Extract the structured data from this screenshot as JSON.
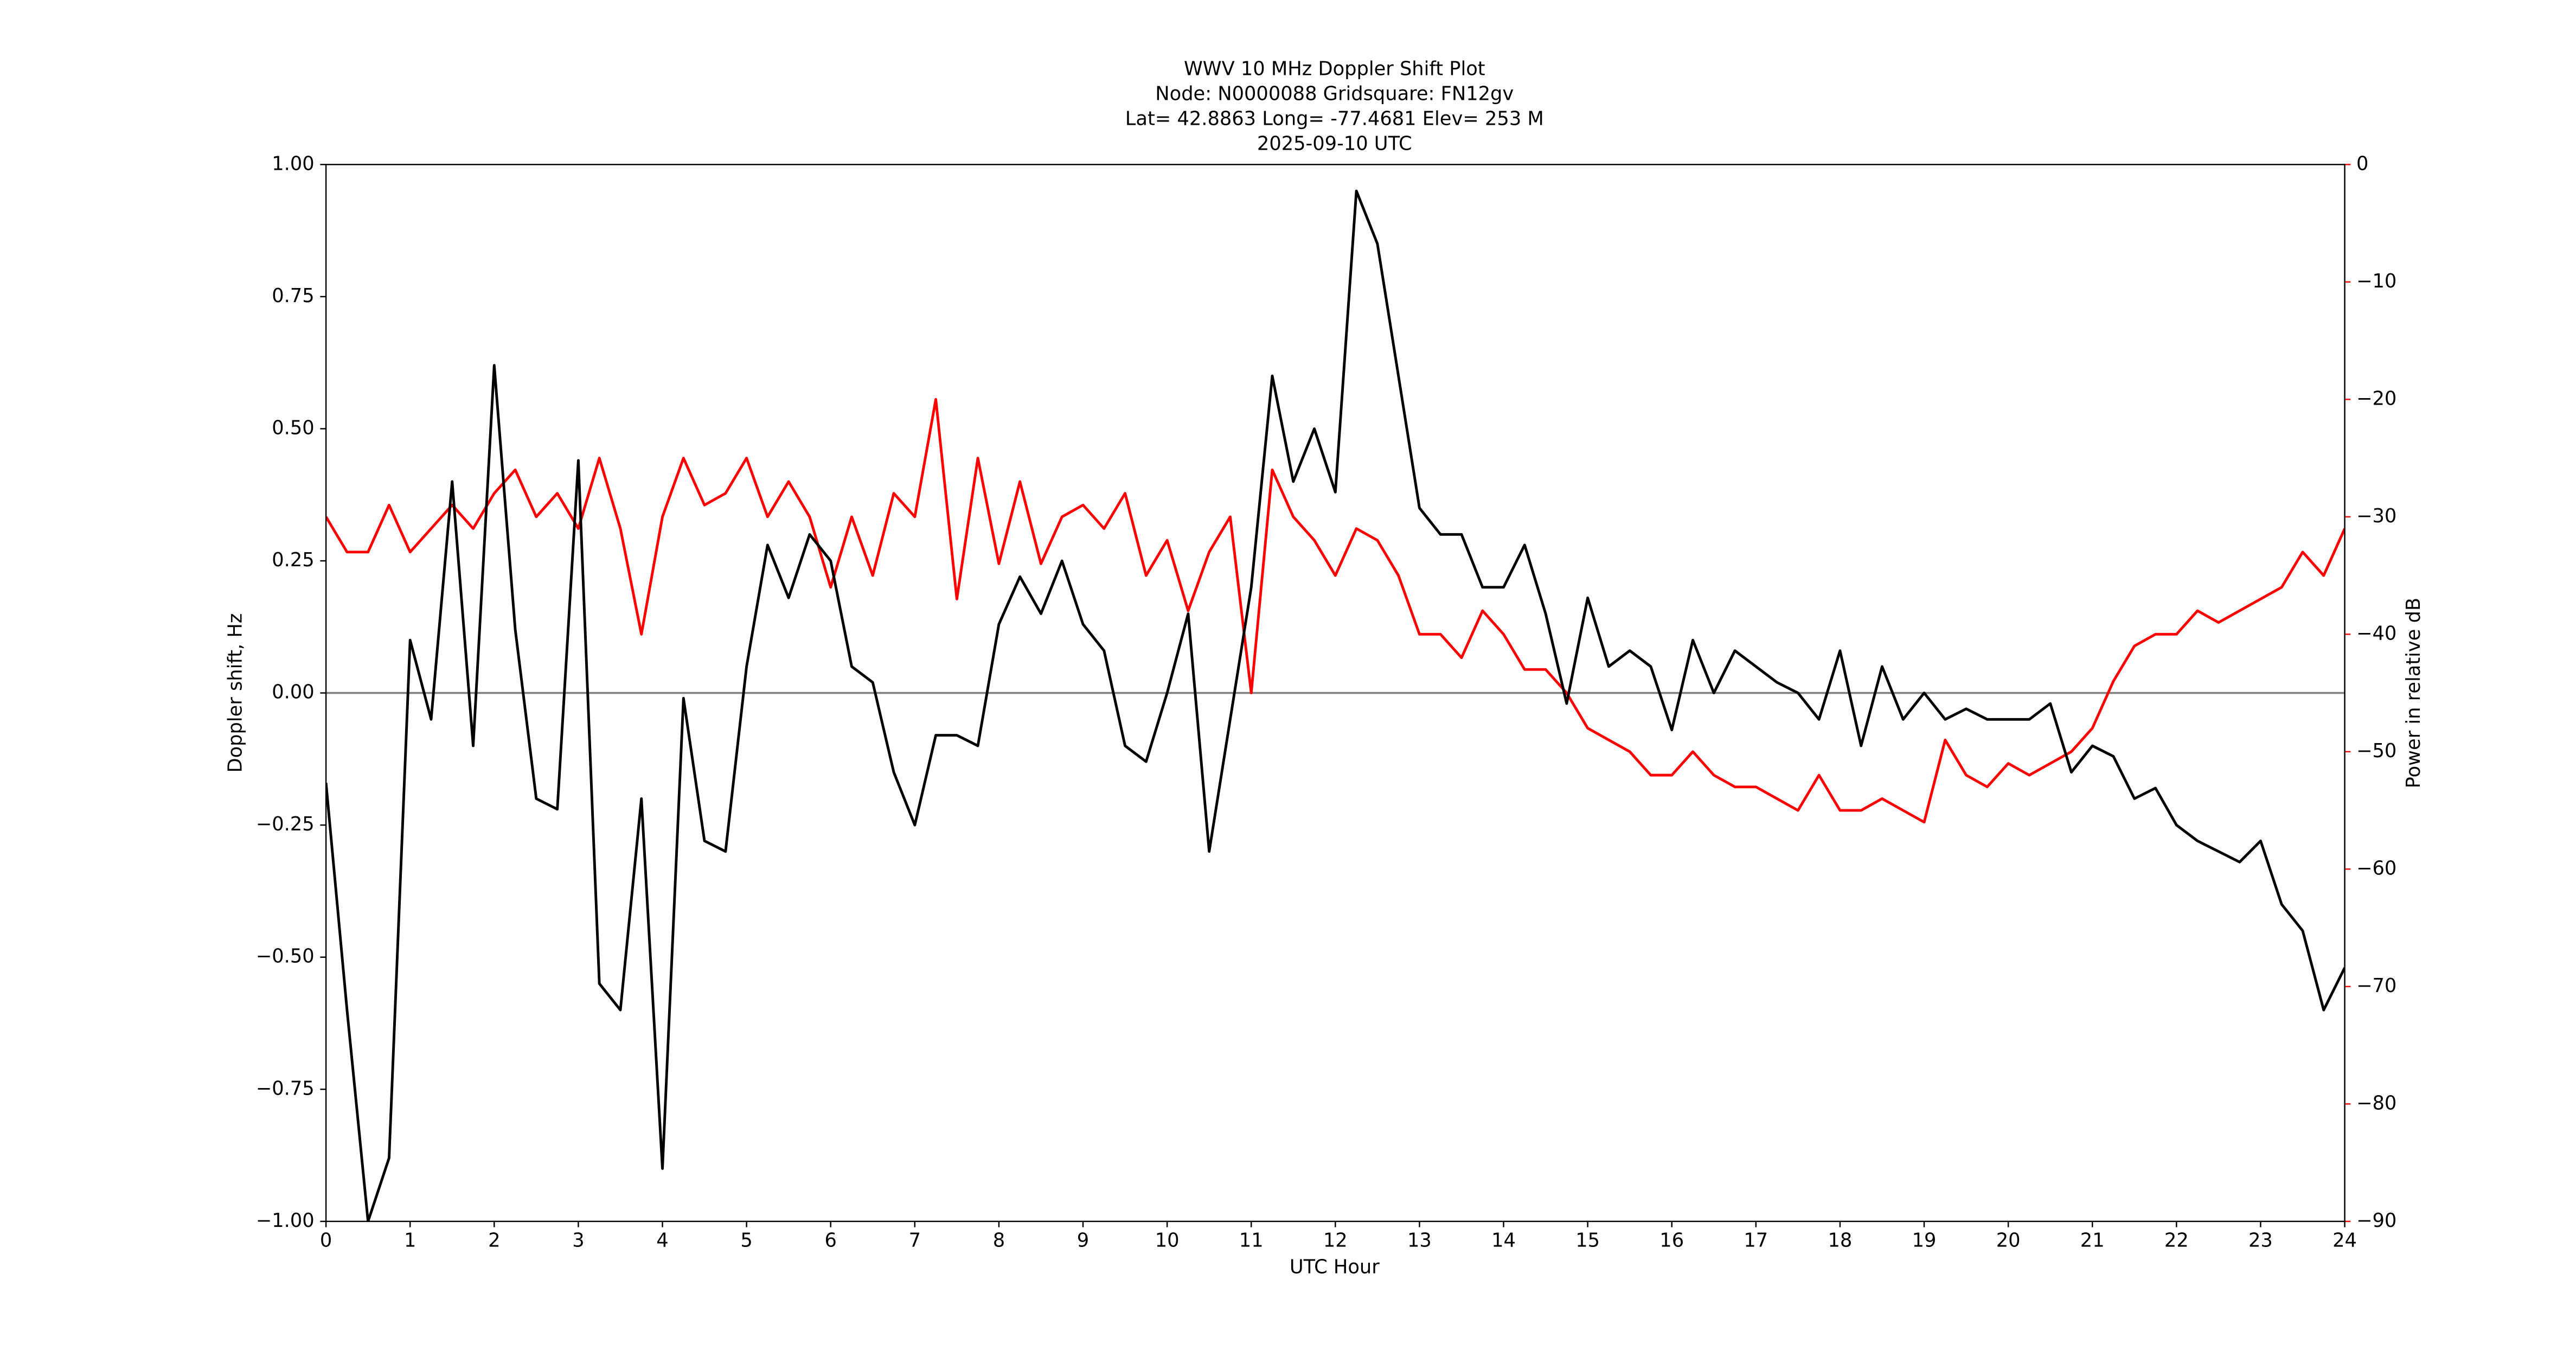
{
  "chart_data": {
    "type": "line",
    "title": [
      "WWV 10 MHz Doppler Shift Plot",
      "Node:  N0000088     Gridsquare:  FN12gv",
      "Lat= 42.8863    Long= -77.4681    Elev= 253 M",
      "2025-09-10  UTC"
    ],
    "xlabel": "UTC Hour",
    "ylabel": "Doppler shift, Hz",
    "y2label": "Power in relative dB",
    "xlim": [
      0,
      24
    ],
    "xticks": [
      0,
      1,
      2,
      3,
      4,
      5,
      6,
      7,
      8,
      9,
      10,
      11,
      12,
      13,
      14,
      15,
      16,
      17,
      18,
      19,
      20,
      21,
      22,
      23,
      24
    ],
    "ylim": [
      -1,
      1
    ],
    "yticks": [
      {
        "value": -1,
        "label": "−1.00"
      },
      {
        "value": -0.75,
        "label": "−0.75"
      },
      {
        "value": -0.5,
        "label": "−0.50"
      },
      {
        "value": -0.25,
        "label": "−0.25"
      },
      {
        "value": 0,
        "label": "0.00"
      },
      {
        "value": 0.25,
        "label": "0.25"
      },
      {
        "value": 0.5,
        "label": "0.50"
      },
      {
        "value": 0.75,
        "label": "0.75"
      },
      {
        "value": 1,
        "label": "1.00"
      }
    ],
    "y2lim": [
      -90,
      0
    ],
    "y2ticks": [
      {
        "value": -90,
        "label": "−90"
      },
      {
        "value": -80,
        "label": "−80"
      },
      {
        "value": -70,
        "label": "−70"
      },
      {
        "value": -60,
        "label": "−60"
      },
      {
        "value": -50,
        "label": "−50"
      },
      {
        "value": -40,
        "label": "−40"
      },
      {
        "value": -30,
        "label": "−30"
      },
      {
        "value": -20,
        "label": "−20"
      },
      {
        "value": -10,
        "label": "−10"
      },
      0
    ],
    "y2color": "#ff0000",
    "reference_line": 0,
    "reference_color": "#808080",
    "x": [
      0,
      0.25,
      0.5,
      0.75,
      1,
      1.25,
      1.5,
      1.75,
      2,
      2.25,
      2.5,
      2.75,
      3,
      3.25,
      3.5,
      3.75,
      4,
      4.25,
      4.5,
      4.75,
      5,
      5.25,
      5.5,
      5.75,
      6,
      6.25,
      6.5,
      6.75,
      7,
      7.25,
      7.5,
      7.75,
      8,
      8.25,
      8.5,
      8.75,
      9,
      9.25,
      9.5,
      9.75,
      10,
      10.25,
      10.5,
      10.75,
      11,
      11.25,
      11.5,
      11.75,
      12,
      12.25,
      12.5,
      12.75,
      13,
      13.25,
      13.5,
      13.75,
      14,
      14.25,
      14.5,
      14.75,
      15,
      15.25,
      15.5,
      15.75,
      16,
      16.25,
      16.5,
      16.75,
      17,
      17.25,
      17.5,
      17.75,
      18,
      18.25,
      18.5,
      18.75,
      19,
      19.25,
      19.5,
      19.75,
      20,
      20.25,
      20.5,
      20.75,
      21,
      21.25,
      21.5,
      21.75,
      22,
      22.25,
      22.5,
      22.75,
      23,
      23.25,
      23.5,
      23.75,
      24
    ],
    "series": [
      {
        "color": "#000000",
        "axis": "y",
        "values": [
          -0.17,
          -0.6,
          -1.0,
          -0.88,
          0.1,
          -0.05,
          0.4,
          -0.1,
          0.62,
          0.12,
          -0.2,
          -0.22,
          0.44,
          -0.55,
          -0.6,
          -0.2,
          -0.9,
          -0.01,
          -0.28,
          -0.3,
          0.05,
          0.28,
          0.18,
          0.3,
          0.25,
          0.05,
          0.02,
          -0.15,
          -0.25,
          -0.08,
          -0.08,
          -0.1,
          0.13,
          0.22,
          0.15,
          0.25,
          0.13,
          0.08,
          -0.1,
          -0.13,
          0.0,
          0.15,
          -0.3,
          -0.05,
          0.2,
          0.6,
          0.4,
          0.5,
          0.38,
          0.95,
          0.85,
          0.6,
          0.35,
          0.3,
          0.3,
          0.2,
          0.2,
          0.28,
          0.15,
          -0.02,
          0.18,
          0.05,
          0.08,
          0.05,
          -0.07,
          0.1,
          0.0,
          0.08,
          0.05,
          0.02,
          0.0,
          -0.05,
          0.08,
          -0.1,
          0.05,
          -0.05,
          0.0,
          -0.05,
          -0.03,
          -0.05,
          -0.05,
          -0.05,
          -0.02,
          -0.15,
          -0.1,
          -0.12,
          -0.2,
          -0.18,
          -0.25,
          -0.28,
          -0.3,
          -0.32,
          -0.28,
          -0.4,
          -0.45,
          -0.6,
          -0.52
        ]
      },
      {
        "color": "#ff0000",
        "axis": "y2",
        "values": [
          -30,
          -33,
          -33,
          -29,
          -33,
          -31,
          -29,
          -31,
          -28,
          -26,
          -30,
          -28,
          -31,
          -25,
          -31,
          -40,
          -30,
          -25,
          -29,
          -28,
          -25,
          -30,
          -27,
          -30,
          -36,
          -30,
          -35,
          -28,
          -30,
          -20,
          -37,
          -25,
          -34,
          -27,
          -34,
          -30,
          -29,
          -31,
          -28,
          -35,
          -32,
          -38,
          -33,
          -30,
          -45,
          -26,
          -30,
          -32,
          -35,
          -31,
          -32,
          -35,
          -40,
          -40,
          -42,
          -38,
          -40,
          -43,
          -43,
          -45,
          -48,
          -49,
          -50,
          -52,
          -52,
          -50,
          -52,
          -53,
          -53,
          -54,
          -55,
          -52,
          -55,
          -55,
          -54,
          -55,
          -56,
          -49,
          -52,
          -53,
          -51,
          -52,
          -51,
          -50,
          -48,
          -44,
          -41,
          -40,
          -40,
          -38,
          -39,
          -38,
          -37,
          -36,
          -33,
          -35,
          -31
        ]
      }
    ]
  }
}
